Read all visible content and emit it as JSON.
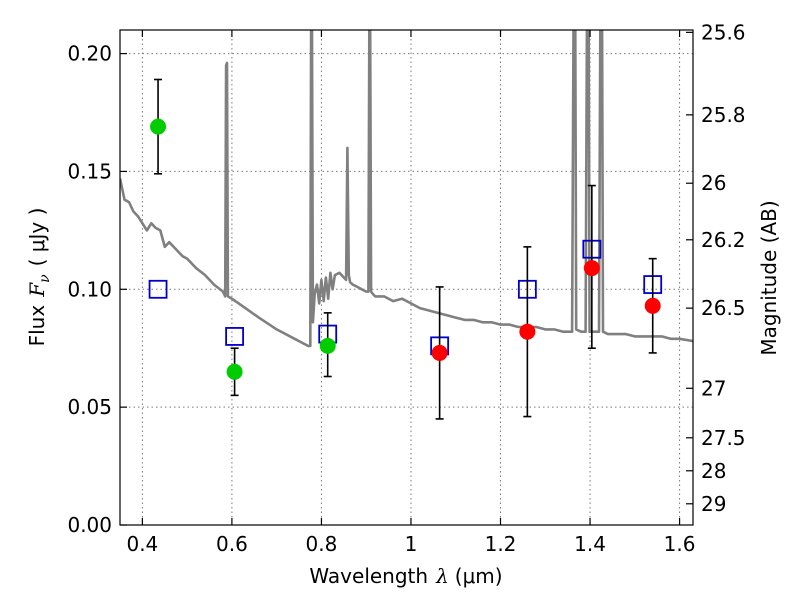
{
  "chart_data": {
    "type": "scatter",
    "xlabel_prefix": "Wavelength",
    "xlabel_symbol": "λ",
    "xlabel_unit": "(μm)",
    "ylabel_prefix": "Flux",
    "ylabel_symbol": "F",
    "ylabel_subscript": "ν",
    "ylabel_unit": "( μJy )",
    "y2label": "Magnitude (AB)",
    "xlim": [
      0.35,
      1.63
    ],
    "ylim": [
      0.0,
      0.21
    ],
    "grid": true,
    "x_ticks": [
      0.4,
      0.6,
      0.8,
      1.0,
      1.2,
      1.4,
      1.6
    ],
    "x_tick_labels": [
      "0.4",
      "0.6",
      "0.8",
      "1",
      "1.2",
      "1.4",
      "1.6"
    ],
    "y_ticks": [
      0.0,
      0.05,
      0.1,
      0.15,
      0.2
    ],
    "y_tick_labels": [
      "0.00",
      "0.05",
      "0.10",
      "0.15",
      "0.20"
    ],
    "y2_ticks": [
      {
        "flux": 0.209,
        "label": "25.6"
      },
      {
        "flux": 0.174,
        "label": "25.8"
      },
      {
        "flux": 0.145,
        "label": "26"
      },
      {
        "flux": 0.121,
        "label": "26.2"
      },
      {
        "flux": 0.092,
        "label": "26.5"
      },
      {
        "flux": 0.058,
        "label": "27"
      },
      {
        "flux": 0.037,
        "label": "27.5"
      },
      {
        "flux": 0.023,
        "label": "28"
      },
      {
        "flux": 0.009,
        "label": "29"
      }
    ],
    "model_spectrum": {
      "color": "#808080",
      "x": [
        0.35,
        0.36,
        0.37,
        0.38,
        0.39,
        0.4,
        0.41,
        0.42,
        0.43,
        0.44,
        0.45,
        0.46,
        0.47,
        0.48,
        0.49,
        0.5,
        0.52,
        0.54,
        0.56,
        0.58,
        0.585,
        0.587,
        0.589,
        0.591,
        0.6,
        0.63,
        0.66,
        0.7,
        0.74,
        0.77,
        0.775,
        0.777,
        0.779,
        0.781,
        0.785,
        0.79,
        0.795,
        0.8,
        0.805,
        0.81,
        0.815,
        0.82,
        0.825,
        0.83,
        0.84,
        0.85,
        0.855,
        0.858,
        0.861,
        0.864,
        0.87,
        0.88,
        0.89,
        0.9,
        0.905,
        0.907,
        0.909,
        0.911,
        0.915,
        0.92,
        0.94,
        0.96,
        0.98,
        1.0,
        1.02,
        1.04,
        1.06,
        1.08,
        1.1,
        1.12,
        1.14,
        1.16,
        1.18,
        1.2,
        1.22,
        1.24,
        1.26,
        1.28,
        1.3,
        1.32,
        1.34,
        1.36,
        1.363,
        1.365,
        1.367,
        1.369,
        1.38,
        1.39,
        1.393,
        1.395,
        1.397,
        1.399,
        1.41,
        1.42,
        1.423,
        1.425,
        1.427,
        1.429,
        1.44,
        1.46,
        1.48,
        1.5,
        1.52,
        1.54,
        1.56,
        1.58,
        1.6,
        1.63
      ],
      "y": [
        0.147,
        0.138,
        0.137,
        0.133,
        0.131,
        0.128,
        0.125,
        0.128,
        0.126,
        0.125,
        0.118,
        0.12,
        0.118,
        0.116,
        0.114,
        0.113,
        0.109,
        0.106,
        0.102,
        0.099,
        0.097,
        0.195,
        0.196,
        0.097,
        0.096,
        0.092,
        0.088,
        0.083,
        0.079,
        0.076,
        0.076,
        0.21,
        0.21,
        0.086,
        0.098,
        0.102,
        0.094,
        0.104,
        0.095,
        0.105,
        0.096,
        0.107,
        0.1,
        0.106,
        0.107,
        0.105,
        0.104,
        0.16,
        0.106,
        0.103,
        0.102,
        0.101,
        0.1,
        0.099,
        0.099,
        0.21,
        0.21,
        0.099,
        0.098,
        0.097,
        0.097,
        0.095,
        0.096,
        0.094,
        0.092,
        0.091,
        0.09,
        0.089,
        0.088,
        0.087,
        0.087,
        0.086,
        0.086,
        0.085,
        0.085,
        0.084,
        0.084,
        0.084,
        0.083,
        0.083,
        0.082,
        0.082,
        0.21,
        0.21,
        0.21,
        0.083,
        0.082,
        0.082,
        0.21,
        0.21,
        0.21,
        0.082,
        0.082,
        0.082,
        0.21,
        0.21,
        0.21,
        0.082,
        0.081,
        0.081,
        0.081,
        0.08,
        0.08,
        0.08,
        0.08,
        0.079,
        0.079,
        0.078
      ]
    },
    "model_photometry": {
      "color": "#0000cc",
      "marker": "square-open",
      "x": [
        0.435,
        0.606,
        0.814,
        1.064,
        1.26,
        1.404,
        1.54
      ],
      "y": [
        0.1,
        0.08,
        0.081,
        0.076,
        0.1,
        0.117,
        0.102
      ]
    },
    "observed_optical": {
      "color": "#00cc00",
      "marker": "circle",
      "x": [
        0.435,
        0.606,
        0.814
      ],
      "y": [
        0.169,
        0.065,
        0.076
      ],
      "err_low": [
        0.02,
        0.01,
        0.013
      ],
      "err_high": [
        0.02,
        0.01,
        0.014
      ]
    },
    "observed_nir": {
      "color": "#ff0000",
      "marker": "circle",
      "x": [
        1.064,
        1.26,
        1.404,
        1.54
      ],
      "y": [
        0.073,
        0.082,
        0.109,
        0.093
      ],
      "err_low": [
        0.028,
        0.036,
        0.034,
        0.02
      ],
      "err_high": [
        0.028,
        0.036,
        0.035,
        0.02
      ]
    }
  }
}
